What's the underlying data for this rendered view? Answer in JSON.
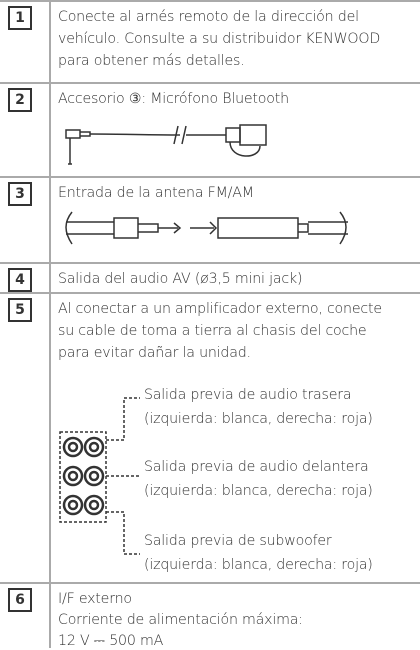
{
  "rows": [
    {
      "number": "1",
      "lines": [
        "Conecte al arnés remoto de la dirección del",
        "vehículo. Consulte a su distribuidor KENWOOD",
        "para obtener más detalles."
      ]
    },
    {
      "number": "2",
      "lines": [
        "Accesorio ③: Micrófono Bluetooth"
      ]
    },
    {
      "number": "3",
      "lines": [
        "Entrada de la antena FM/AM"
      ]
    },
    {
      "number": "4",
      "lines": [
        "Salida del audio AV (ø3,5 mini jack)"
      ]
    },
    {
      "number": "5",
      "lines": [
        "Al conectar a un amplificador externo, conecte",
        "su cable de toma a tierra al chasis del coche",
        "para evitar dañar la unidad."
      ],
      "outputs": [
        {
          "lines": [
            "Salida previa de audio trasera",
            "(izquierda: blanca, derecha: roja)"
          ]
        },
        {
          "lines": [
            "Salida previa de audio delantera",
            "(izquierda: blanca, derecha: roja)"
          ]
        },
        {
          "lines": [
            "Salida previa de subwoofer",
            "(izquierda: blanca, derecha: roja)"
          ]
        }
      ]
    },
    {
      "number": "6",
      "lines": [
        "I/F externo",
        "Corriente de alimentación máxima:",
        "12 V ⎓ 500 mA"
      ]
    }
  ]
}
